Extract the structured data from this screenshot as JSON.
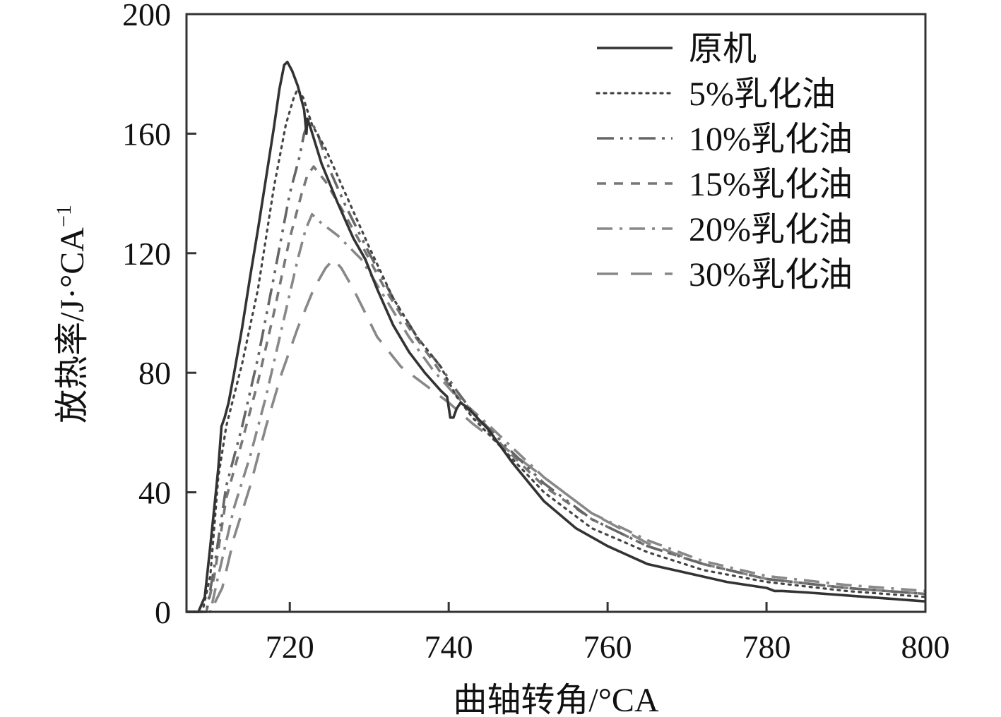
{
  "chart_data": {
    "type": "line",
    "xlabel": "曲轴转角/°CA",
    "ylabel": "放热率/J·°CA",
    "ylabel_superscript": "−1",
    "xlim": [
      707,
      800
    ],
    "ylim": [
      0,
      200
    ],
    "x_ticks": [
      720,
      740,
      760,
      780,
      800
    ],
    "y_ticks": [
      0,
      40,
      80,
      120,
      160,
      200
    ],
    "x_tick_labels": [
      "720",
      "740",
      "760",
      "780",
      "800"
    ],
    "y_tick_labels": [
      "0",
      "40",
      "80",
      "120",
      "160",
      "200"
    ],
    "legend_position": "top-right",
    "series": [
      {
        "name": "原机",
        "color": "#333333",
        "style": "solid",
        "x": [
          707,
          708.5,
          709.3,
          710,
          710.5,
          711,
          711.4,
          711.8,
          712.3,
          713,
          714,
          715,
          716,
          717,
          718,
          718.7,
          719.3,
          719.7,
          720.3,
          721,
          721.8,
          722.1,
          722.2,
          722.6,
          724,
          726,
          728,
          729.5,
          731,
          733,
          735,
          737,
          739,
          739.8,
          740.2,
          740.6,
          741,
          741.5,
          742.5,
          745,
          748,
          752,
          756,
          760,
          765,
          770,
          775,
          780,
          781,
          782,
          785,
          790,
          795,
          800
        ],
        "y": [
          0,
          0,
          5,
          22,
          35,
          48,
          62,
          65,
          70,
          80,
          95,
          112,
          128,
          145,
          162,
          175,
          183,
          184,
          181,
          176,
          168,
          160,
          165,
          162,
          150,
          137,
          125,
          118,
          108,
          96,
          87,
          80,
          74,
          72,
          65,
          65,
          68,
          70,
          68,
          61,
          50,
          37,
          28,
          22,
          16,
          13,
          10,
          8,
          7,
          7,
          6.5,
          5.5,
          4.5,
          3.5
        ]
      },
      {
        "name": "5%乳化油",
        "color": "#444444",
        "style": "dotted",
        "x": [
          707,
          709,
          710,
          711,
          712,
          714,
          716,
          718,
          719.5,
          720.5,
          721,
          721.7,
          722.8,
          724.5,
          727,
          730,
          733,
          736,
          739,
          741,
          743,
          747,
          752,
          758,
          765,
          772,
          780,
          790,
          800
        ],
        "y": [
          0,
          0,
          12,
          45,
          62,
          83,
          108,
          142,
          163,
          172,
          175,
          172,
          163,
          155,
          140,
          122,
          105,
          92,
          82,
          72,
          65,
          54,
          40,
          28,
          20,
          14,
          10,
          7,
          5
        ]
      },
      {
        "name": "10%乳化油",
        "color": "#666666",
        "style": "dashdotdot",
        "x": [
          707,
          709.5,
          710.5,
          712,
          714,
          716,
          718,
          720,
          721.2,
          721.8,
          722.5,
          723.5,
          725,
          727,
          730,
          733,
          736,
          739,
          741,
          743,
          747,
          752,
          758,
          765,
          772,
          780,
          790,
          800
        ],
        "y": [
          0,
          0,
          15,
          42,
          62,
          85,
          112,
          140,
          152,
          160,
          165,
          160,
          148,
          136,
          120,
          105,
          92,
          82,
          74,
          67,
          56,
          43,
          31,
          22,
          16,
          11,
          8,
          6
        ]
      },
      {
        "name": "15%乳化油",
        "color": "#777777",
        "style": "shortdash",
        "x": [
          707,
          709.5,
          710.5,
          712,
          714,
          716,
          718,
          720,
          721.5,
          722.2,
          723,
          724.5,
          726.5,
          729,
          732,
          735,
          738,
          740.5,
          743,
          747,
          752,
          758,
          765,
          772,
          780,
          790,
          800
        ],
        "y": [
          0,
          0,
          12,
          38,
          57,
          77,
          100,
          125,
          140,
          146,
          149,
          144,
          135,
          123,
          108,
          95,
          84,
          74,
          66,
          55,
          42,
          31,
          22,
          16,
          11,
          8,
          6
        ]
      },
      {
        "name": "20%乳化油",
        "color": "#888888",
        "style": "dashdot",
        "x": [
          707,
          710,
          711,
          713,
          715,
          717,
          719,
          721,
          722,
          722.8,
          724,
          726,
          729,
          732,
          735,
          738,
          741,
          744,
          748,
          752,
          758,
          765,
          772,
          780,
          790,
          800
        ],
        "y": [
          0,
          0,
          12,
          35,
          52,
          72,
          95,
          118,
          128,
          133,
          130,
          126,
          118,
          105,
          92,
          81,
          72,
          65,
          55,
          45,
          33,
          24,
          17,
          12,
          9,
          7
        ]
      },
      {
        "name": "30%乳化油",
        "color": "#888888",
        "style": "longdash",
        "x": [
          707,
          710,
          711.5,
          713,
          715,
          717,
          719,
          721,
          723,
          724.5,
          725.5,
          726.5,
          728,
          731,
          734,
          737,
          740,
          743,
          747,
          752,
          758,
          765,
          772,
          780,
          790,
          800
        ],
        "y": [
          0,
          0,
          8,
          25,
          42,
          62,
          80,
          95,
          108,
          115,
          118,
          115,
          108,
          92,
          82,
          76,
          70,
          63,
          55,
          45,
          33,
          23,
          16,
          11,
          8,
          6
        ]
      }
    ]
  }
}
